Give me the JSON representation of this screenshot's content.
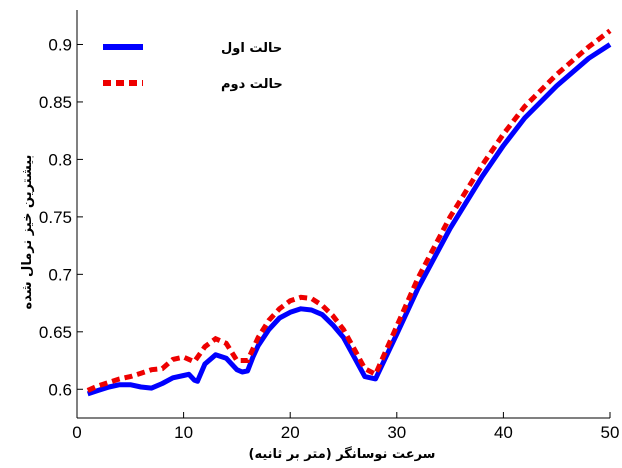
{
  "chart_data": {
    "type": "line",
    "xlabel": "سرعت نوسانگر (متر بر ثانیه)",
    "ylabel": "بیشترین خیز نرمال شده",
    "xlim": [
      0,
      50
    ],
    "ylim": [
      0.575,
      0.93
    ],
    "x_ticks": [
      0,
      10,
      20,
      30,
      40,
      50
    ],
    "y_ticks": [
      0.6,
      0.65,
      0.7,
      0.75,
      0.8,
      0.85,
      0.9
    ],
    "x_tick_labels": [
      "0",
      "10",
      "20",
      "30",
      "40",
      "50"
    ],
    "y_tick_labels": [
      "0.6",
      "0.65",
      "0.7",
      "0.75",
      "0.8",
      "0.85",
      "0.9"
    ],
    "grid": false,
    "legend_position": "top-left",
    "series": [
      {
        "name": "حالت اول",
        "color": "#0000ff",
        "style": "solid",
        "points": [
          [
            1,
            0.596
          ],
          [
            2,
            0.599
          ],
          [
            3,
            0.602
          ],
          [
            4,
            0.604
          ],
          [
            5,
            0.604
          ],
          [
            6,
            0.602
          ],
          [
            7,
            0.601
          ],
          [
            8,
            0.605
          ],
          [
            9,
            0.61
          ],
          [
            10,
            0.612
          ],
          [
            10.5,
            0.613
          ],
          [
            11,
            0.608
          ],
          [
            11.3,
            0.607
          ],
          [
            12,
            0.622
          ],
          [
            13,
            0.63
          ],
          [
            14,
            0.627
          ],
          [
            15,
            0.617
          ],
          [
            15.5,
            0.615
          ],
          [
            16,
            0.616
          ],
          [
            16.5,
            0.628
          ],
          [
            17,
            0.638
          ],
          [
            18,
            0.652
          ],
          [
            19,
            0.662
          ],
          [
            20,
            0.667
          ],
          [
            21,
            0.67
          ],
          [
            22,
            0.669
          ],
          [
            23,
            0.665
          ],
          [
            24,
            0.656
          ],
          [
            25,
            0.645
          ],
          [
            26,
            0.628
          ],
          [
            27,
            0.611
          ],
          [
            28,
            0.609
          ],
          [
            30,
            0.648
          ],
          [
            32,
            0.688
          ],
          [
            35,
            0.74
          ],
          [
            38,
            0.785
          ],
          [
            40,
            0.812
          ],
          [
            42,
            0.836
          ],
          [
            45,
            0.864
          ],
          [
            48,
            0.888
          ],
          [
            50,
            0.9
          ]
        ]
      },
      {
        "name": "حالت دوم",
        "color": "#ee0000",
        "style": "dashed",
        "points": [
          [
            1,
            0.599
          ],
          [
            2,
            0.603
          ],
          [
            3,
            0.606
          ],
          [
            4,
            0.609
          ],
          [
            5,
            0.611
          ],
          [
            6,
            0.614
          ],
          [
            7,
            0.617
          ],
          [
            8,
            0.618
          ],
          [
            9,
            0.626
          ],
          [
            10,
            0.628
          ],
          [
            11,
            0.624
          ],
          [
            12,
            0.637
          ],
          [
            13,
            0.644
          ],
          [
            14,
            0.64
          ],
          [
            15,
            0.625
          ],
          [
            16,
            0.625
          ],
          [
            17,
            0.645
          ],
          [
            18,
            0.66
          ],
          [
            19,
            0.67
          ],
          [
            20,
            0.677
          ],
          [
            21,
            0.68
          ],
          [
            22,
            0.679
          ],
          [
            23,
            0.673
          ],
          [
            24,
            0.664
          ],
          [
            25,
            0.652
          ],
          [
            26,
            0.635
          ],
          [
            27,
            0.618
          ],
          [
            28,
            0.613
          ],
          [
            30,
            0.655
          ],
          [
            32,
            0.697
          ],
          [
            35,
            0.75
          ],
          [
            38,
            0.795
          ],
          [
            40,
            0.822
          ],
          [
            42,
            0.846
          ],
          [
            45,
            0.874
          ],
          [
            48,
            0.898
          ],
          [
            50,
            0.912
          ]
        ]
      }
    ]
  }
}
